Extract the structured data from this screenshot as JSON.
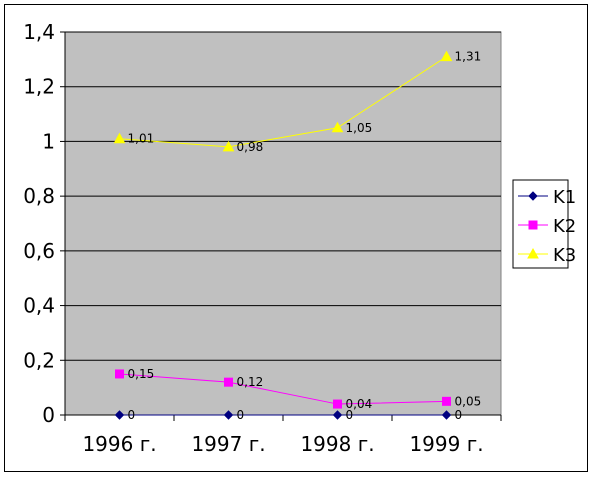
{
  "chart_data": {
    "type": "line",
    "title": "",
    "xlabel": "",
    "ylabel": "",
    "categories": [
      "1996 г.",
      "1997 г.",
      "1998 г.",
      "1999 г."
    ],
    "ylim": [
      0,
      1.4
    ],
    "yticks": [
      0,
      0.2,
      0.4,
      0.6,
      0.8,
      1,
      1.2,
      1.4
    ],
    "ytick_labels": [
      "0",
      "0,2",
      "0,4",
      "0,6",
      "0,8",
      "1",
      "1,2",
      "1,4"
    ],
    "grid": true,
    "legend_position": "right",
    "plot_background": "#c0c0c0",
    "series": [
      {
        "name": "K1",
        "color": "#000080",
        "marker": "diamond",
        "values": [
          0,
          0,
          0,
          0
        ],
        "labels": [
          "0",
          "0",
          "0",
          "0"
        ]
      },
      {
        "name": "K2",
        "color": "#ff00ff",
        "marker": "square",
        "values": [
          0.15,
          0.12,
          0.04,
          0.05
        ],
        "labels": [
          "0,15",
          "0,12",
          "0,04",
          "0,05"
        ]
      },
      {
        "name": "K3",
        "color": "#ffff00",
        "marker": "triangle",
        "values": [
          1.01,
          0.98,
          1.05,
          1.31
        ],
        "labels": [
          "1,01",
          "0,98",
          "1,05",
          "1,31"
        ]
      }
    ]
  }
}
